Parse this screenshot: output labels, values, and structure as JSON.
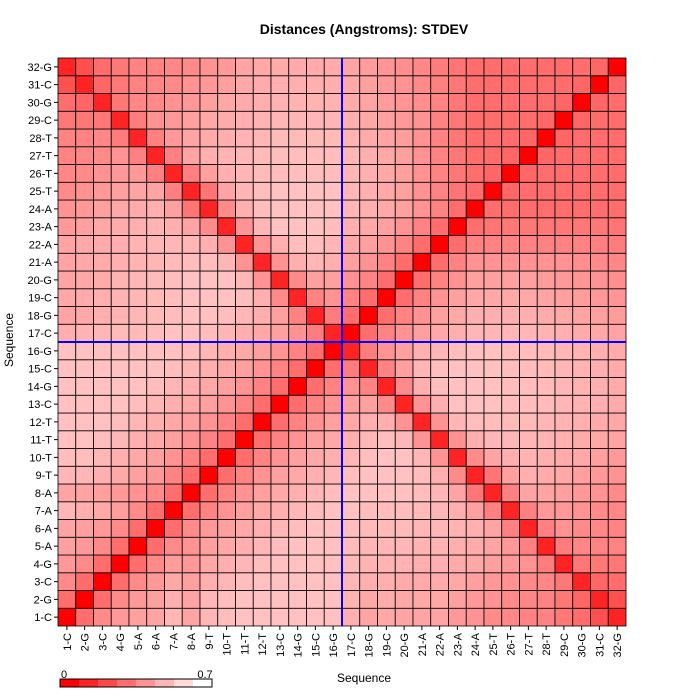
{
  "chart_data": {
    "type": "heatmap",
    "title": "Distances (Angstroms):  STDEV",
    "xlabel": "Sequence",
    "ylabel": "Sequence",
    "labels": [
      "1-C",
      "2-G",
      "3-C",
      "4-G",
      "5-A",
      "6-A",
      "7-A",
      "8-A",
      "9-T",
      "10-T",
      "11-T",
      "12-T",
      "13-C",
      "14-G",
      "15-C",
      "16-G",
      "17-C",
      "18-G",
      "19-C",
      "20-G",
      "21-A",
      "22-A",
      "23-A",
      "24-A",
      "25-T",
      "26-T",
      "27-T",
      "28-T",
      "29-C",
      "30-G",
      "31-C",
      "32-G"
    ],
    "color_scale": {
      "min": 0,
      "max": 0.7,
      "min_label": "0",
      "max_label": "0.7",
      "low_color": "#ff0000",
      "high_color": "#ffffff"
    },
    "highlight_index": 16,
    "highlight_color": "#0000ff",
    "values": [
      [
        0.0,
        0.3,
        0.38,
        0.42,
        0.44,
        0.45,
        0.5,
        0.45,
        0.5,
        0.52,
        0.53,
        0.53,
        0.53,
        0.53,
        0.53,
        0.53,
        0.48,
        0.45,
        0.46,
        0.45,
        0.45,
        0.45,
        0.42,
        0.4,
        0.38,
        0.37,
        0.36,
        0.36,
        0.33,
        0.3,
        0.22,
        0.1
      ],
      [
        0.3,
        0.0,
        0.3,
        0.38,
        0.42,
        0.44,
        0.48,
        0.45,
        0.5,
        0.52,
        0.53,
        0.53,
        0.53,
        0.53,
        0.53,
        0.53,
        0.49,
        0.46,
        0.47,
        0.46,
        0.46,
        0.46,
        0.44,
        0.42,
        0.4,
        0.38,
        0.37,
        0.36,
        0.33,
        0.28,
        0.1,
        0.22
      ],
      [
        0.38,
        0.3,
        0.0,
        0.3,
        0.38,
        0.42,
        0.46,
        0.44,
        0.48,
        0.5,
        0.52,
        0.53,
        0.53,
        0.53,
        0.53,
        0.53,
        0.5,
        0.48,
        0.48,
        0.47,
        0.47,
        0.47,
        0.46,
        0.44,
        0.42,
        0.4,
        0.38,
        0.37,
        0.33,
        0.1,
        0.28,
        0.3
      ],
      [
        0.42,
        0.38,
        0.3,
        0.0,
        0.3,
        0.38,
        0.43,
        0.42,
        0.46,
        0.48,
        0.5,
        0.52,
        0.53,
        0.53,
        0.53,
        0.53,
        0.51,
        0.49,
        0.49,
        0.49,
        0.48,
        0.48,
        0.47,
        0.46,
        0.44,
        0.42,
        0.4,
        0.34,
        0.1,
        0.33,
        0.33,
        0.33
      ],
      [
        0.44,
        0.42,
        0.38,
        0.3,
        0.0,
        0.3,
        0.38,
        0.4,
        0.44,
        0.46,
        0.48,
        0.5,
        0.52,
        0.53,
        0.53,
        0.53,
        0.51,
        0.5,
        0.5,
        0.5,
        0.49,
        0.49,
        0.48,
        0.47,
        0.45,
        0.42,
        0.35,
        0.1,
        0.34,
        0.37,
        0.36,
        0.36
      ],
      [
        0.45,
        0.44,
        0.42,
        0.38,
        0.3,
        0.0,
        0.3,
        0.38,
        0.42,
        0.44,
        0.46,
        0.48,
        0.5,
        0.52,
        0.53,
        0.53,
        0.52,
        0.51,
        0.51,
        0.51,
        0.5,
        0.5,
        0.49,
        0.48,
        0.45,
        0.35,
        0.1,
        0.35,
        0.4,
        0.38,
        0.37,
        0.36
      ],
      [
        0.5,
        0.48,
        0.46,
        0.43,
        0.38,
        0.3,
        0.0,
        0.3,
        0.36,
        0.4,
        0.44,
        0.46,
        0.48,
        0.5,
        0.52,
        0.53,
        0.53,
        0.52,
        0.52,
        0.52,
        0.51,
        0.5,
        0.48,
        0.44,
        0.35,
        0.1,
        0.35,
        0.42,
        0.42,
        0.4,
        0.38,
        0.37
      ],
      [
        0.45,
        0.45,
        0.44,
        0.42,
        0.4,
        0.38,
        0.3,
        0.0,
        0.3,
        0.36,
        0.4,
        0.44,
        0.46,
        0.48,
        0.5,
        0.52,
        0.53,
        0.53,
        0.53,
        0.53,
        0.52,
        0.5,
        0.45,
        0.32,
        0.1,
        0.35,
        0.45,
        0.45,
        0.44,
        0.42,
        0.4,
        0.38
      ],
      [
        0.5,
        0.5,
        0.48,
        0.46,
        0.44,
        0.42,
        0.36,
        0.3,
        0.0,
        0.3,
        0.36,
        0.4,
        0.44,
        0.46,
        0.48,
        0.5,
        0.52,
        0.53,
        0.53,
        0.53,
        0.52,
        0.48,
        0.38,
        0.1,
        0.32,
        0.44,
        0.48,
        0.47,
        0.46,
        0.44,
        0.42,
        0.4
      ],
      [
        0.52,
        0.52,
        0.5,
        0.48,
        0.46,
        0.44,
        0.4,
        0.36,
        0.3,
        0.0,
        0.3,
        0.36,
        0.4,
        0.44,
        0.46,
        0.48,
        0.5,
        0.52,
        0.53,
        0.53,
        0.5,
        0.4,
        0.1,
        0.38,
        0.45,
        0.48,
        0.49,
        0.48,
        0.47,
        0.46,
        0.44,
        0.42
      ],
      [
        0.53,
        0.53,
        0.52,
        0.5,
        0.48,
        0.46,
        0.44,
        0.4,
        0.36,
        0.3,
        0.0,
        0.3,
        0.36,
        0.4,
        0.44,
        0.46,
        0.48,
        0.5,
        0.52,
        0.5,
        0.4,
        0.1,
        0.4,
        0.48,
        0.5,
        0.5,
        0.5,
        0.49,
        0.48,
        0.47,
        0.46,
        0.45
      ],
      [
        0.53,
        0.53,
        0.53,
        0.52,
        0.5,
        0.48,
        0.46,
        0.44,
        0.4,
        0.36,
        0.3,
        0.0,
        0.3,
        0.36,
        0.4,
        0.44,
        0.46,
        0.48,
        0.48,
        0.4,
        0.1,
        0.4,
        0.5,
        0.52,
        0.52,
        0.51,
        0.51,
        0.5,
        0.49,
        0.48,
        0.47,
        0.46
      ],
      [
        0.53,
        0.53,
        0.53,
        0.53,
        0.52,
        0.5,
        0.48,
        0.46,
        0.44,
        0.4,
        0.36,
        0.3,
        0.0,
        0.3,
        0.36,
        0.4,
        0.44,
        0.44,
        0.38,
        0.1,
        0.4,
        0.48,
        0.53,
        0.53,
        0.53,
        0.52,
        0.52,
        0.51,
        0.5,
        0.49,
        0.48,
        0.47
      ],
      [
        0.53,
        0.53,
        0.53,
        0.53,
        0.53,
        0.52,
        0.5,
        0.48,
        0.46,
        0.44,
        0.4,
        0.36,
        0.3,
        0.0,
        0.3,
        0.36,
        0.4,
        0.36,
        0.1,
        0.38,
        0.48,
        0.52,
        0.53,
        0.53,
        0.53,
        0.52,
        0.52,
        0.51,
        0.5,
        0.49,
        0.48,
        0.47
      ],
      [
        0.53,
        0.53,
        0.53,
        0.53,
        0.53,
        0.53,
        0.52,
        0.5,
        0.48,
        0.46,
        0.44,
        0.4,
        0.36,
        0.3,
        0.0,
        0.3,
        0.34,
        0.1,
        0.36,
        0.44,
        0.5,
        0.52,
        0.53,
        0.53,
        0.53,
        0.52,
        0.52,
        0.51,
        0.5,
        0.49,
        0.48,
        0.47
      ],
      [
        0.53,
        0.53,
        0.53,
        0.53,
        0.53,
        0.53,
        0.53,
        0.52,
        0.5,
        0.48,
        0.46,
        0.44,
        0.4,
        0.36,
        0.3,
        0.0,
        0.1,
        0.34,
        0.4,
        0.44,
        0.48,
        0.5,
        0.52,
        0.53,
        0.53,
        0.52,
        0.52,
        0.51,
        0.5,
        0.49,
        0.48,
        0.47
      ],
      [
        0.48,
        0.49,
        0.5,
        0.51,
        0.51,
        0.52,
        0.53,
        0.53,
        0.52,
        0.5,
        0.48,
        0.46,
        0.44,
        0.4,
        0.34,
        0.1,
        0.0,
        0.3,
        0.36,
        0.4,
        0.44,
        0.46,
        0.48,
        0.5,
        0.5,
        0.5,
        0.5,
        0.49,
        0.48,
        0.47,
        0.46,
        0.45
      ],
      [
        0.45,
        0.46,
        0.48,
        0.49,
        0.5,
        0.51,
        0.52,
        0.53,
        0.53,
        0.52,
        0.5,
        0.48,
        0.44,
        0.36,
        0.1,
        0.34,
        0.3,
        0.0,
        0.3,
        0.36,
        0.4,
        0.44,
        0.46,
        0.48,
        0.48,
        0.48,
        0.48,
        0.47,
        0.46,
        0.45,
        0.44,
        0.43
      ],
      [
        0.46,
        0.47,
        0.48,
        0.49,
        0.5,
        0.51,
        0.52,
        0.53,
        0.53,
        0.53,
        0.52,
        0.48,
        0.38,
        0.1,
        0.36,
        0.4,
        0.36,
        0.3,
        0.0,
        0.3,
        0.36,
        0.4,
        0.44,
        0.46,
        0.46,
        0.46,
        0.46,
        0.45,
        0.44,
        0.43,
        0.42,
        0.41
      ],
      [
        0.45,
        0.46,
        0.47,
        0.49,
        0.5,
        0.51,
        0.52,
        0.53,
        0.53,
        0.53,
        0.5,
        0.4,
        0.1,
        0.38,
        0.44,
        0.44,
        0.4,
        0.36,
        0.3,
        0.0,
        0.3,
        0.36,
        0.4,
        0.44,
        0.44,
        0.44,
        0.44,
        0.43,
        0.42,
        0.41,
        0.4,
        0.39
      ],
      [
        0.45,
        0.46,
        0.47,
        0.48,
        0.49,
        0.5,
        0.51,
        0.52,
        0.52,
        0.5,
        0.4,
        0.1,
        0.4,
        0.48,
        0.5,
        0.48,
        0.44,
        0.4,
        0.36,
        0.3,
        0.0,
        0.3,
        0.36,
        0.4,
        0.4,
        0.4,
        0.4,
        0.4,
        0.4,
        0.39,
        0.38,
        0.37
      ],
      [
        0.45,
        0.46,
        0.47,
        0.48,
        0.49,
        0.5,
        0.5,
        0.5,
        0.48,
        0.4,
        0.1,
        0.4,
        0.48,
        0.52,
        0.52,
        0.5,
        0.46,
        0.44,
        0.4,
        0.36,
        0.3,
        0.0,
        0.3,
        0.36,
        0.36,
        0.36,
        0.36,
        0.36,
        0.36,
        0.36,
        0.35,
        0.34
      ],
      [
        0.42,
        0.44,
        0.46,
        0.47,
        0.48,
        0.49,
        0.48,
        0.45,
        0.38,
        0.1,
        0.4,
        0.5,
        0.53,
        0.53,
        0.53,
        0.52,
        0.48,
        0.46,
        0.44,
        0.4,
        0.36,
        0.3,
        0.0,
        0.3,
        0.32,
        0.33,
        0.33,
        0.33,
        0.33,
        0.33,
        0.33,
        0.32
      ],
      [
        0.4,
        0.42,
        0.44,
        0.46,
        0.47,
        0.48,
        0.44,
        0.32,
        0.1,
        0.38,
        0.48,
        0.52,
        0.53,
        0.53,
        0.53,
        0.53,
        0.5,
        0.48,
        0.46,
        0.44,
        0.4,
        0.36,
        0.3,
        0.0,
        0.3,
        0.3,
        0.3,
        0.3,
        0.3,
        0.3,
        0.3,
        0.3
      ],
      [
        0.38,
        0.4,
        0.42,
        0.44,
        0.45,
        0.45,
        0.35,
        0.1,
        0.32,
        0.45,
        0.5,
        0.52,
        0.53,
        0.53,
        0.53,
        0.53,
        0.5,
        0.48,
        0.46,
        0.44,
        0.4,
        0.36,
        0.32,
        0.3,
        0.0,
        0.28,
        0.3,
        0.3,
        0.3,
        0.3,
        0.3,
        0.3
      ],
      [
        0.37,
        0.38,
        0.4,
        0.42,
        0.42,
        0.35,
        0.1,
        0.35,
        0.44,
        0.48,
        0.5,
        0.51,
        0.52,
        0.52,
        0.52,
        0.52,
        0.5,
        0.48,
        0.46,
        0.44,
        0.4,
        0.36,
        0.33,
        0.3,
        0.28,
        0.0,
        0.28,
        0.3,
        0.3,
        0.3,
        0.3,
        0.3
      ],
      [
        0.36,
        0.37,
        0.38,
        0.4,
        0.35,
        0.1,
        0.35,
        0.45,
        0.48,
        0.49,
        0.5,
        0.51,
        0.52,
        0.52,
        0.52,
        0.52,
        0.5,
        0.48,
        0.46,
        0.44,
        0.4,
        0.36,
        0.33,
        0.3,
        0.3,
        0.28,
        0.0,
        0.28,
        0.3,
        0.3,
        0.3,
        0.3
      ],
      [
        0.36,
        0.36,
        0.37,
        0.34,
        0.1,
        0.35,
        0.42,
        0.45,
        0.47,
        0.48,
        0.49,
        0.5,
        0.51,
        0.51,
        0.51,
        0.51,
        0.49,
        0.47,
        0.45,
        0.43,
        0.4,
        0.36,
        0.33,
        0.3,
        0.3,
        0.3,
        0.28,
        0.0,
        0.28,
        0.3,
        0.3,
        0.3
      ],
      [
        0.33,
        0.33,
        0.33,
        0.1,
        0.34,
        0.4,
        0.42,
        0.44,
        0.46,
        0.47,
        0.48,
        0.49,
        0.5,
        0.5,
        0.5,
        0.5,
        0.48,
        0.46,
        0.44,
        0.42,
        0.4,
        0.36,
        0.33,
        0.3,
        0.3,
        0.3,
        0.3,
        0.28,
        0.0,
        0.28,
        0.3,
        0.3
      ],
      [
        0.3,
        0.28,
        0.1,
        0.33,
        0.37,
        0.38,
        0.4,
        0.42,
        0.44,
        0.46,
        0.47,
        0.48,
        0.49,
        0.49,
        0.49,
        0.49,
        0.47,
        0.45,
        0.43,
        0.41,
        0.39,
        0.36,
        0.33,
        0.3,
        0.3,
        0.3,
        0.3,
        0.3,
        0.28,
        0.0,
        0.28,
        0.3
      ],
      [
        0.22,
        0.1,
        0.28,
        0.33,
        0.36,
        0.37,
        0.38,
        0.4,
        0.42,
        0.44,
        0.46,
        0.47,
        0.48,
        0.48,
        0.48,
        0.48,
        0.46,
        0.44,
        0.42,
        0.4,
        0.38,
        0.35,
        0.33,
        0.3,
        0.3,
        0.3,
        0.3,
        0.3,
        0.3,
        0.28,
        0.0,
        0.28
      ],
      [
        0.1,
        0.22,
        0.3,
        0.33,
        0.36,
        0.36,
        0.37,
        0.38,
        0.4,
        0.42,
        0.45,
        0.46,
        0.47,
        0.47,
        0.47,
        0.47,
        0.45,
        0.43,
        0.41,
        0.39,
        0.37,
        0.34,
        0.32,
        0.3,
        0.3,
        0.3,
        0.3,
        0.3,
        0.3,
        0.3,
        0.28,
        0.0
      ]
    ]
  }
}
